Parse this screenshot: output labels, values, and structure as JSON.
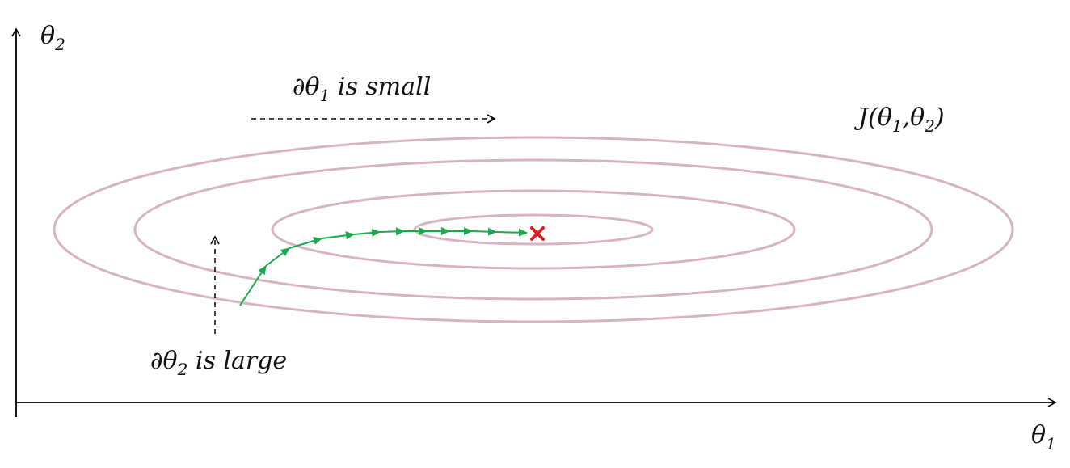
{
  "axes": {
    "x_label": "θ",
    "x_label_sub": "1",
    "y_label": "θ",
    "y_label_sub": "2",
    "color": "#000000"
  },
  "function_label": {
    "prefix": "J(θ",
    "sub1": "1",
    "mid": ",θ",
    "sub2": "2",
    "suffix": ")"
  },
  "annotation_small": {
    "prefix": "∂θ",
    "sub": "1",
    "text": " is small"
  },
  "annotation_large": {
    "prefix": "∂θ",
    "sub": "2",
    "text": " is large"
  },
  "colors": {
    "contour": "#d7b4c0",
    "path": "#1aaa4c",
    "minimum_marker": "#e02020",
    "dashed_arrow": "#000000"
  },
  "contours": {
    "count": 4
  },
  "descent_path": {
    "steps": 13
  },
  "minimum_marker": {
    "icon": "x-mark-icon"
  }
}
